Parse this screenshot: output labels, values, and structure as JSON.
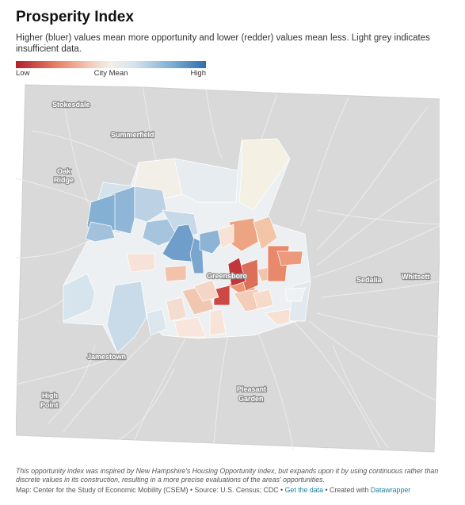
{
  "title": "Prosperity Index",
  "description": "Higher (bluer) values mean more opportunity and lower (redder) values mean less. Light grey indicates insufficient data.",
  "legend": {
    "low_label": "Low",
    "mid_label": "City Mean",
    "high_label": "High",
    "colors": [
      "#b2202b",
      "#e8826a",
      "#f3efe6",
      "#7eaed3",
      "#2d6db0"
    ],
    "no_data_color": "#d9d9d9"
  },
  "map_labels": {
    "stokesdale": "Stokesdale",
    "summerfield": "Summerfield",
    "oak_ridge_1": "Oak",
    "oak_ridge_2": "Ridge",
    "greensboro": "Greensboro",
    "sedalia": "Sedalia",
    "whitsett": "Whitsett",
    "jamestown": "Jamestown",
    "high_point_1": "High",
    "high_point_2": "Point",
    "pleasant_garden_1": "Pleasant",
    "pleasant_garden_2": "Garden"
  },
  "footer": {
    "note": "This opportunity index was inspired by New Hampshire's Housing Opportunity index, but expands upon it by using continuous rather than discrete values in its construction, resulting in a more precise evaluations of the areas' opportunities.",
    "credit_prefix": "Map: Center for the Study of Economic Mobility (CSEM) • Source: U.S. Census; CDC • ",
    "get_data_link": "Get the data",
    "credit_middle": " • Created with ",
    "datawrapper_link": "Datawrapper"
  }
}
